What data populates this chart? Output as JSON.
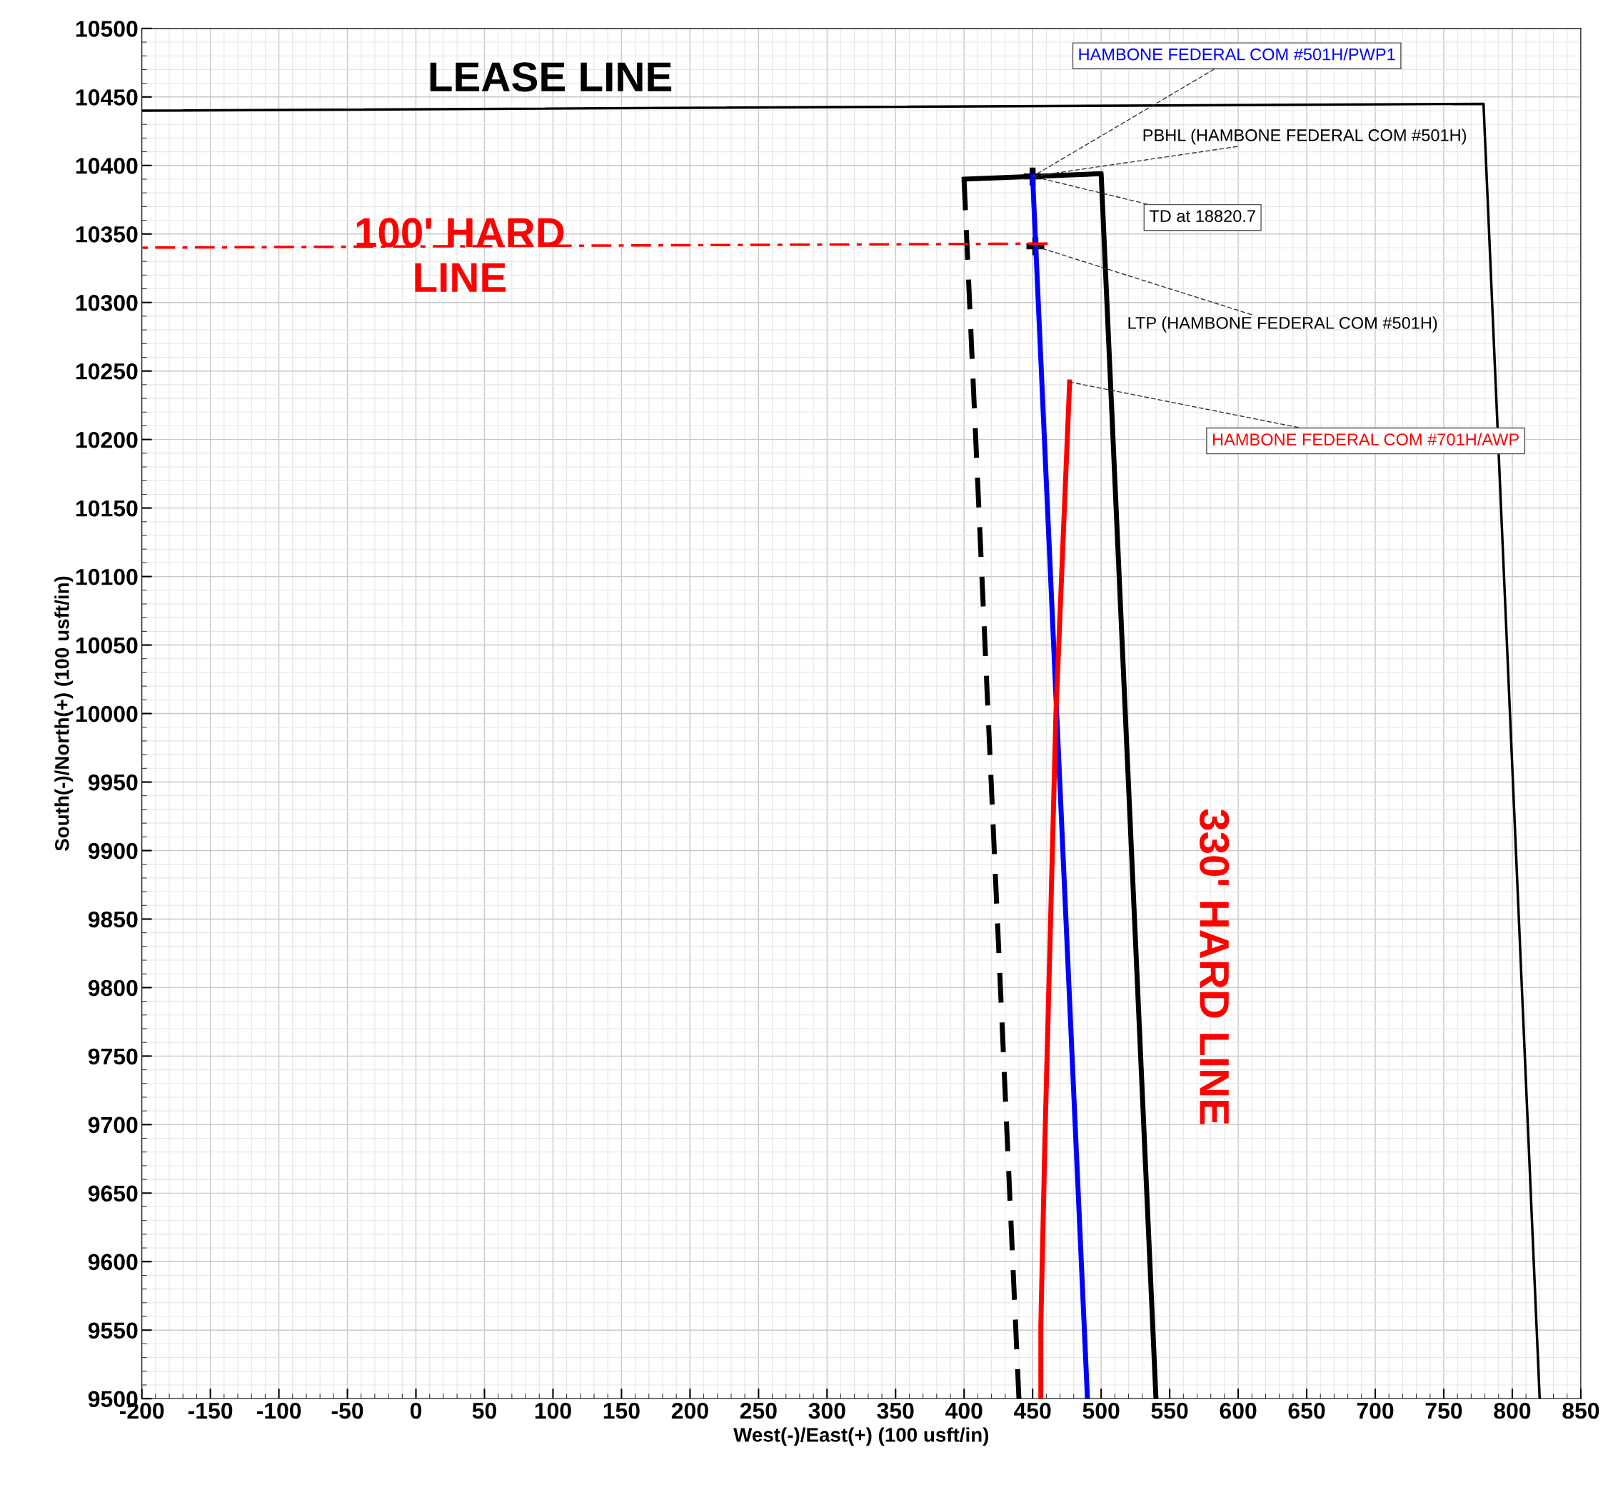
{
  "chart_data": {
    "type": "line",
    "xlabel": "West(-)/East(+) (100 usft/in)",
    "ylabel": "South(-)/North(+) (100 usft/in)",
    "xlim": [
      -200,
      850
    ],
    "ylim": [
      9500,
      10500
    ],
    "xticks": [
      -200,
      -150,
      -100,
      -50,
      0,
      50,
      100,
      150,
      200,
      250,
      300,
      350,
      400,
      450,
      500,
      550,
      600,
      650,
      700,
      750,
      800,
      850
    ],
    "yticks": [
      9500,
      9550,
      9600,
      9650,
      9700,
      9750,
      9800,
      9850,
      9900,
      9950,
      10000,
      10050,
      10100,
      10150,
      10200,
      10250,
      10300,
      10350,
      10400,
      10450,
      10500
    ],
    "grid": true,
    "legend": false,
    "series": [
      {
        "color": "#000000",
        "line_style": "solid",
        "x": [
          -200,
          779,
          820
        ],
        "values": [
          10440,
          10445,
          9500
        ]
      },
      {
        "color": "#000000",
        "line_style": "solid",
        "x": [
          400,
          500,
          540
        ],
        "values": [
          10390,
          10394,
          9500
        ]
      },
      {
        "color": "#000000",
        "line_style": "dashed",
        "x": [
          400,
          440
        ],
        "values": [
          10389,
          9500
        ]
      },
      {
        "color": "#0000ff",
        "line_style": "solid",
        "x": [
          450,
          490
        ],
        "values": [
          10392,
          9500
        ]
      },
      {
        "color": "#ff0000",
        "line_style": "solid",
        "x": [
          477,
          467,
          459,
          456,
          456
        ],
        "values": [
          10242,
          10000,
          9690,
          9554,
          9500
        ]
      },
      {
        "color": "#ff0000",
        "line_style": "dashdot",
        "x": [
          -200,
          461
        ],
        "values": [
          10340,
          10343
        ]
      },
      {
        "type": "scatter",
        "marker": "cross",
        "color": "#000000",
        "x": [
          450,
          452
        ],
        "values": [
          10392,
          10341
        ]
      }
    ],
    "annotations": [
      {
        "text": "LEASE LINE",
        "x": 98,
        "y": 10441
      },
      {
        "text": "100' HARD\nLINE",
        "x": 32,
        "y": 10340
      },
      {
        "text": "330' HARD LINE",
        "x": 526,
        "y": 9815
      },
      {
        "text": "HAMBONE FEDERAL COM #501H/PWP1",
        "x": 450,
        "y": 10392
      },
      {
        "text": "PBHL (HAMBONE FEDERAL COM #501H)",
        "x": 450,
        "y": 10392
      },
      {
        "text": "TD at 18820.7",
        "x": 450,
        "y": 10392
      },
      {
        "text": "LTP (HAMBONE FEDERAL COM #501H)",
        "x": 452,
        "y": 10341
      },
      {
        "text": "HAMBONE FEDERAL COM #701H/AWP",
        "x": 477,
        "y": 10242
      }
    ]
  }
}
